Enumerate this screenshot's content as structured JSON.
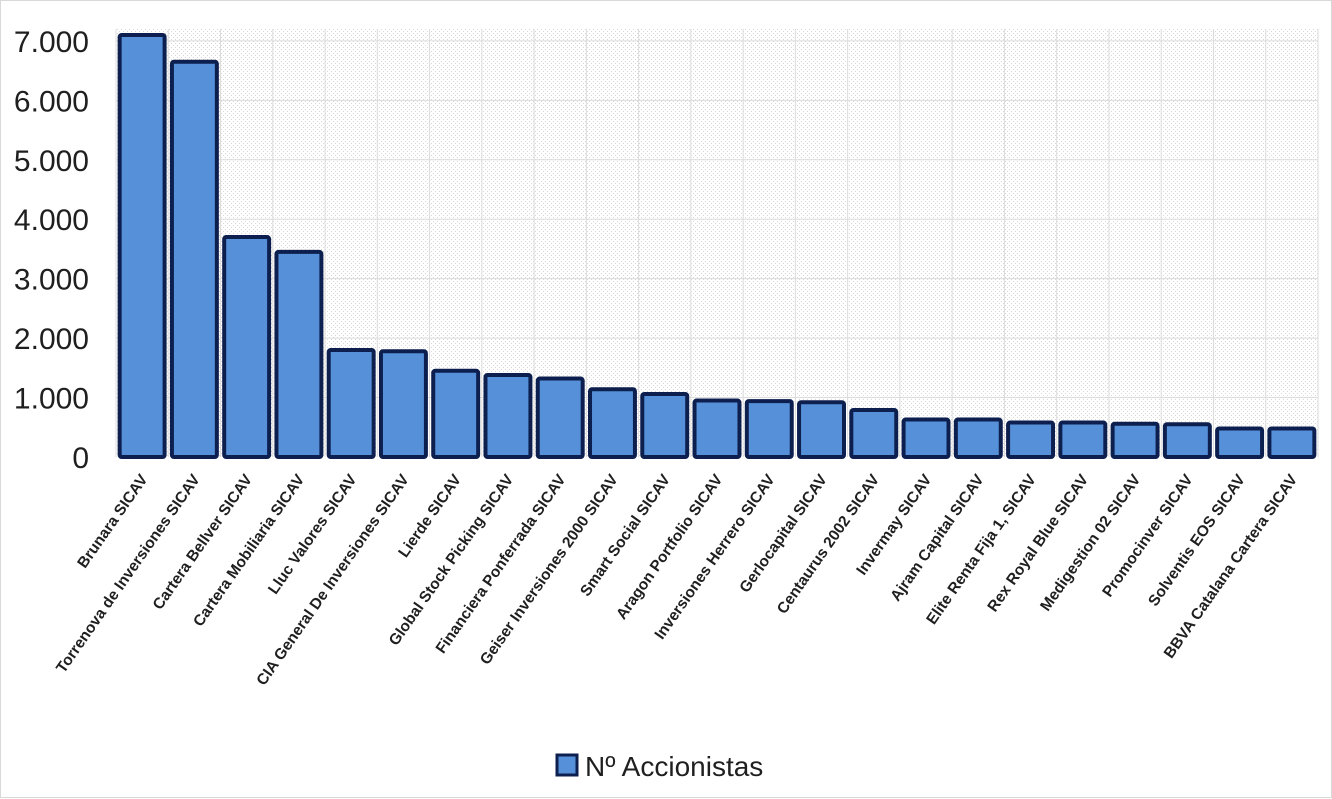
{
  "chart_data": {
    "type": "bar",
    "title": "",
    "xlabel": "",
    "ylabel": "",
    "ylim": [
      0,
      7000
    ],
    "yticks": [
      {
        "value": 0,
        "label": "0"
      },
      {
        "value": 1000,
        "label": "1.000"
      },
      {
        "value": 2000,
        "label": "2.000"
      },
      {
        "value": 3000,
        "label": "3.000"
      },
      {
        "value": 4000,
        "label": "4.000"
      },
      {
        "value": 5000,
        "label": "5.000"
      },
      {
        "value": 6000,
        "label": "6.000"
      },
      {
        "value": 7000,
        "label": "7.000"
      }
    ],
    "categories": [
      "Brunara SICAV",
      "Torrenova de Inversiones SICAV",
      "Cartera Bellver SICAV",
      "Cartera Mobiliaria SICAV",
      "Lluc Valores SICAV",
      "CIA General De Inversiones SICAV",
      "Lierde SICAV",
      "Global Stock Picking SICAV",
      "Financiera Ponferrada SICAV",
      "Geiser Inversiones 2000 SICAV",
      "Smart Social SICAV",
      "Aragon Portfolio SICAV",
      "Inversiones Herrero SICAV",
      "Gerlocapital SICAV",
      "Centaurus 2002 SICAV",
      "Invermay SICAV",
      "Ajram Capital SICAV",
      "Elite Renta Fija 1, SICAV",
      "Rex Royal Blue SICAV",
      "Medigestion 02 SICAV",
      "Promocinver SICAV",
      "Solventis EOS SICAV",
      "BBVA Catalana Cartera SICAV"
    ],
    "series": [
      {
        "name": "Nº Accionistas",
        "color": "#5590d8",
        "border_color": "#0d1f4f",
        "values": [
          7100,
          6650,
          3700,
          3450,
          1800,
          1780,
          1450,
          1380,
          1320,
          1140,
          1060,
          950,
          940,
          920,
          790,
          630,
          630,
          580,
          580,
          560,
          550,
          480,
          480
        ]
      }
    ],
    "legend": {
      "position": "bottom-center",
      "label": "Nº Accionistas"
    },
    "grid": true
  }
}
